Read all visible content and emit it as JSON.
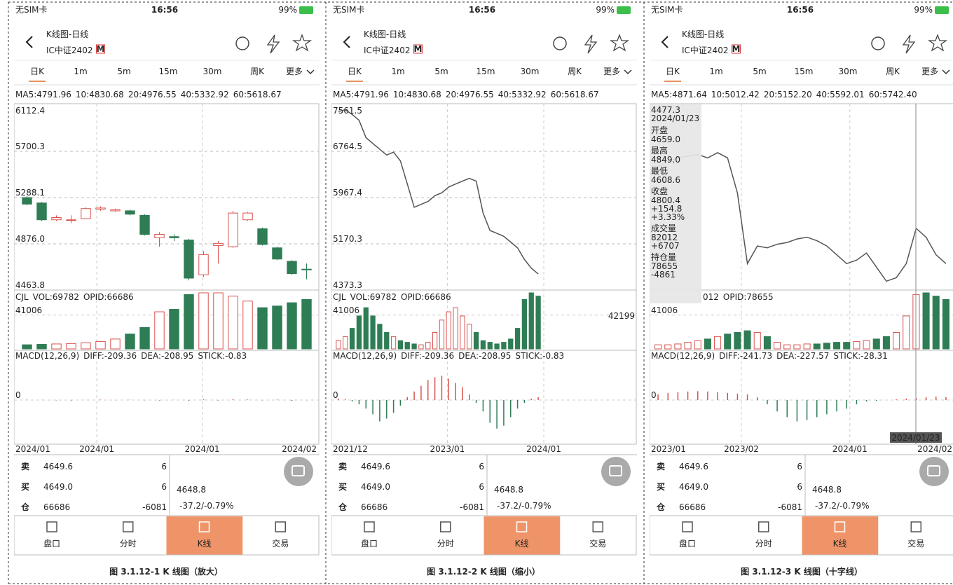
{
  "panels": [
    {
      "status": {
        "carrier": "无SIM卡",
        "time": "16:56",
        "battery": "99%"
      },
      "header": {
        "subtitle": "K线图-日线",
        "title": "IC中证2402",
        "badge": "M"
      },
      "tabs": [
        "日K",
        "1m",
        "5m",
        "15m",
        "30m",
        "周K",
        "更多"
      ],
      "ma_legend": [
        "MA5:4791.96",
        "10:4830.68",
        "20:4976.55",
        "40:5332.92",
        "60:5618.67"
      ],
      "chart": {
        "ylim": [
          4463.8,
          6112.4
        ],
        "yticks": [
          4463.8,
          {
            "value": 4876,
            "label": "4876.0"
          },
          5288.1,
          5700.3,
          6112.4
        ],
        "candles": [
          {
            "open": 5288,
            "high": 5300,
            "low": 5220,
            "close": 5230
          },
          {
            "open": 5240,
            "high": 5250,
            "low": 5080,
            "close": 5090
          },
          {
            "open": 5090,
            "high": 5130,
            "low": 5080,
            "close": 5110
          },
          {
            "open": 5085,
            "high": 5130,
            "low": 5060,
            "close": 5090
          },
          {
            "open": 5100,
            "high": 5200,
            "low": 5095,
            "close": 5190
          },
          {
            "open": 5185,
            "high": 5210,
            "low": 5170,
            "close": 5195
          },
          {
            "open": 5170,
            "high": 5190,
            "low": 5160,
            "close": 5180
          },
          {
            "open": 5170,
            "high": 5180,
            "low": 5130,
            "close": 5140
          },
          {
            "open": 5130,
            "high": 5140,
            "low": 4950,
            "close": 4960
          },
          {
            "open": 4930,
            "high": 4980,
            "low": 4850,
            "close": 4960
          },
          {
            "open": 4940,
            "high": 4960,
            "low": 4900,
            "close": 4930
          },
          {
            "open": 4910,
            "high": 4920,
            "low": 4550,
            "close": 4570
          },
          {
            "open": 4600,
            "high": 4810,
            "low": 4580,
            "close": 4780
          },
          {
            "open": 4860,
            "high": 4900,
            "low": 4700,
            "close": 4880
          },
          {
            "open": 4850,
            "high": 5170,
            "low": 4840,
            "close": 5150
          },
          {
            "open": 5090,
            "high": 5160,
            "low": 5080,
            "close": 5150
          },
          {
            "open": 5010,
            "high": 5020,
            "low": 4860,
            "close": 4870
          },
          {
            "open": 4840,
            "high": 4850,
            "low": 4730,
            "close": 4740
          },
          {
            "open": 4720,
            "high": 4730,
            "low": 4600,
            "close": 4610
          },
          {
            "open": 4650,
            "high": 4700,
            "low": 4560,
            "close": 4648.8
          }
        ],
        "vol_ylim": [
          0,
          68000
        ],
        "vol_yticks": [
          41006
        ],
        "volumes": [
          5000,
          5500,
          6000,
          6500,
          7500,
          9000,
          12000,
          18000,
          26000,
          45000,
          48000,
          66000,
          68000,
          68000,
          64000,
          58000,
          50000,
          52000,
          56000,
          60000
        ],
        "macd_ylim": [
          -300,
          300
        ],
        "macd_yticks": [
          0
        ],
        "macd": [
          2,
          1,
          -2,
          -3,
          1,
          3,
          -1,
          2,
          -1,
          -3,
          1,
          -4,
          5,
          -3,
          6,
          4,
          -2,
          3,
          -5,
          -1
        ]
      },
      "vol_legend": [
        "CJL",
        "VOL:69782",
        "OPID:66686"
      ],
      "macd_legend": [
        "MACD(12,26,9)",
        "DIFF:-209.36",
        "DEA:-208.95",
        "STICK:-0.83"
      ],
      "dates": [
        "2024/01",
        "2024/01",
        "2024/01",
        "2024/02"
      ],
      "quote": {
        "sell": [
          "卖",
          "4649.6",
          "6"
        ],
        "buy": [
          "买",
          "4649.0",
          "6"
        ],
        "position": [
          "仓",
          "66686",
          "-6081"
        ],
        "last": "4648.8",
        "change": "-37.2/-0.79%"
      },
      "nav": [
        "盘口",
        "分时",
        "K线",
        "交易"
      ],
      "caption": "图 3.1.12-1 K 线图（放大）"
    },
    {
      "status": {
        "carrier": "无SIM卡",
        "time": "16:56",
        "battery": "99%"
      },
      "header": {
        "subtitle": "K线图-日线",
        "title": "IC中证2402",
        "badge": "M"
      },
      "tabs": [
        "日K",
        "1m",
        "5m",
        "15m",
        "30m",
        "周K",
        "更多"
      ],
      "ma_legend": [
        "MA5:4791.96",
        "10:4830.68",
        "20:4976.55",
        "40:5332.92",
        "60:5618.67"
      ],
      "chart": {
        "ylim": [
          4373.3,
          7561.5
        ],
        "yticks": [
          4373.3,
          5170.3,
          5967.4,
          6764.5,
          7561.5
        ],
        "closes": [
          7450,
          7480,
          7400,
          7300,
          7000,
          6900,
          6800,
          6700,
          6750,
          6600,
          6200,
          5800,
          5850,
          5900,
          6000,
          6050,
          6150,
          6200,
          6250,
          6300,
          6250,
          5700,
          5400,
          5350,
          5300,
          5200,
          5100,
          4900,
          4750,
          4650
        ],
        "vol_ylim": [
          0,
          68000
        ],
        "vol_yticks": [
          41006
        ],
        "volumes": [
          10000,
          15000,
          25000,
          40000,
          50000,
          40000,
          30000,
          20000,
          15000,
          10000,
          8000,
          6000,
          5000,
          8000,
          20000,
          35000,
          45000,
          50000,
          40000,
          30000,
          20000,
          10000,
          8000,
          6000,
          8000,
          12000,
          25000,
          60000,
          68000,
          64000
        ],
        "macd_ylim": [
          -300,
          300
        ],
        "macd_yticks": [
          0
        ],
        "macd": [
          10,
          5,
          -10,
          -30,
          -60,
          -100,
          -150,
          -130,
          -90,
          -40,
          20,
          60,
          100,
          140,
          160,
          170,
          150,
          120,
          90,
          40,
          -20,
          -80,
          -160,
          -200,
          -180,
          -120,
          -60,
          -20,
          10,
          20
        ]
      },
      "vol_legend": [
        "CJL",
        "VOL:69782",
        "OPID:66686"
      ],
      "vol_right_label": "42199",
      "macd_legend": [
        "MACD(12,26,9)",
        "DIFF:-209.36",
        "DEA:-208.95",
        "STICK:-0.83"
      ],
      "dates": [
        "2021/12",
        "2023/01",
        "2024/01"
      ],
      "quote": {
        "sell": [
          "卖",
          "4649.6",
          "6"
        ],
        "buy": [
          "买",
          "4649.0",
          "6"
        ],
        "position": [
          "仓",
          "66686",
          "-6081"
        ],
        "last": "4648.8",
        "change": "-37.2/-0.79%"
      },
      "nav": [
        "盘口",
        "分时",
        "K线",
        "交易"
      ],
      "caption": "图 3.1.12-2 K 线图（缩小）"
    },
    {
      "status": {
        "carrier": "无SIM卡",
        "time": "16:56",
        "battery": "99%"
      },
      "header": {
        "subtitle": "K线图-日线",
        "title": "IC中证2402",
        "badge": "M"
      },
      "tabs": [
        "日K",
        "1m",
        "5m",
        "15m",
        "30m",
        "周K",
        "更多"
      ],
      "ma_legend": [
        "MA5:4871.64",
        "10:5012.42",
        "20:5152.20",
        "40:5592.01",
        "60:5742.40"
      ],
      "chart": {
        "ylim": [
          4350,
          5400
        ],
        "closes": [
          5050,
          5080,
          5100,
          5110,
          5120,
          5100,
          5130,
          5100,
          4900,
          4500,
          4600,
          4590,
          4610,
          4620,
          4640,
          4650,
          4630,
          4600,
          4550,
          4500,
          4520,
          4560,
          4480,
          4400,
          4420,
          4500,
          4700,
          4650,
          4550,
          4500
        ],
        "vol_ylim": [
          0,
          68000
        ],
        "vol_yticks": [
          41006
        ],
        "volumes": [
          5000,
          5000,
          6000,
          8000,
          10000,
          12000,
          15000,
          18000,
          20000,
          22000,
          20000,
          15000,
          8000,
          5000,
          5000,
          6000,
          6000,
          7000,
          8000,
          8000,
          9000,
          10000,
          12000,
          15000,
          20000,
          40000,
          66000,
          68000,
          64000,
          60000
        ],
        "macd_ylim": [
          -300,
          300
        ],
        "macd_yticks": [
          0
        ],
        "macd": [
          40,
          50,
          55,
          60,
          62,
          60,
          55,
          50,
          45,
          40,
          20,
          -30,
          -80,
          -120,
          -150,
          -140,
          -120,
          -100,
          -80,
          -60,
          -30,
          -10,
          -5,
          0,
          5,
          10,
          15,
          20,
          25,
          20
        ]
      },
      "vol_legend": [
        "012",
        "OPID:78655"
      ],
      "macd_legend": [
        "MACD(12,26,9)",
        "DIFF:-241.73",
        "DEA:-227.57",
        "STICK:-28.31"
      ],
      "dates": [
        "2023/01",
        "2023/02",
        "2024/01",
        "2024/02"
      ],
      "tooltip": {
        "price": "4477.3",
        "date": "2024/01/23",
        "rows": [
          {
            "label": "开盘",
            "values": [
              "4659.0"
            ]
          },
          {
            "label": "最高",
            "values": [
              "4849.0"
            ]
          },
          {
            "label": "最低",
            "values": [
              "4608.6"
            ]
          },
          {
            "label": "收盘",
            "values": [
              "4800.4",
              "+154.8",
              "+3.33%"
            ]
          },
          {
            "label": "成交量",
            "values": [
              "82012",
              "+6707"
            ]
          },
          {
            "label": "持仓量",
            "values": [
              "78655",
              "-4861"
            ]
          }
        ]
      },
      "crosshair_date": "2024/01/23",
      "quote": {
        "sell": [
          "卖",
          "4649.6",
          "6"
        ],
        "buy": [
          "买",
          "4649.0",
          "6"
        ],
        "position": [
          "仓",
          "66686",
          "-6081"
        ],
        "last": "4648.8",
        "change": "-37.2/-0.79%"
      },
      "nav": [
        "盘口",
        "分时",
        "K线",
        "交易"
      ],
      "caption": "图 3.1.12-3 K 线图（十字线）"
    }
  ]
}
